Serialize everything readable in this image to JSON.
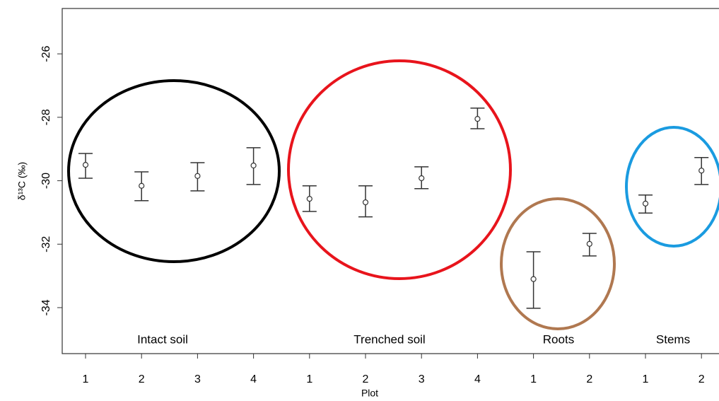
{
  "chart_data": {
    "type": "errorbar",
    "ylabel": "δ¹³C (‰)",
    "xlabel": "Plot",
    "categories": [
      "1",
      "2",
      "3",
      "4",
      "1",
      "2",
      "3",
      "4",
      "1",
      "2",
      "1",
      "2"
    ],
    "values": [
      -29.5,
      -30.16,
      -29.85,
      -29.52,
      -30.57,
      -30.68,
      -29.92,
      -28.05,
      -33.1,
      -31.99,
      -30.72,
      -29.68
    ],
    "upper": [
      -29.14,
      -29.72,
      -29.43,
      -28.96,
      -30.16,
      -30.16,
      -29.56,
      -27.71,
      -32.24,
      -31.66,
      -30.45,
      -29.27
    ],
    "lower": [
      -29.92,
      -30.63,
      -30.32,
      -30.12,
      -30.97,
      -31.14,
      -30.25,
      -28.36,
      -34.02,
      -32.37,
      -31.02,
      -30.12
    ],
    "groups": [
      "Intact soil",
      "Trenched soil",
      "Roots",
      "Stems"
    ],
    "color": "#333333",
    "ylim": [
      -35.45,
      -24.57
    ],
    "yticks": [
      -34,
      -32,
      -30,
      -28,
      -26
    ]
  }
}
